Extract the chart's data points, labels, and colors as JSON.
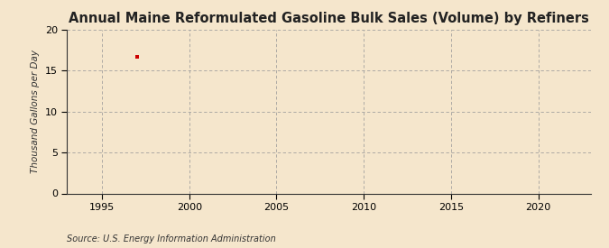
{
  "title": "Annual Maine Reformulated Gasoline Bulk Sales (Volume) by Refiners",
  "ylabel": "Thousand Gallons per Day",
  "source": "Source: U.S. Energy Information Administration",
  "data_x": [
    1997
  ],
  "data_y": [
    16.7
  ],
  "marker_color": "#cc0000",
  "marker": "s",
  "marker_size": 3,
  "xlim": [
    1993,
    2023
  ],
  "ylim": [
    0,
    20
  ],
  "xticks": [
    1995,
    2000,
    2005,
    2010,
    2015,
    2020
  ],
  "yticks": [
    0,
    5,
    10,
    15,
    20
  ],
  "background_color": "#f5e6cc",
  "plot_bg_color": "#f5e6cc",
  "grid_color": "#999999",
  "title_fontsize": 10.5,
  "label_fontsize": 7.5,
  "tick_fontsize": 8,
  "source_fontsize": 7
}
